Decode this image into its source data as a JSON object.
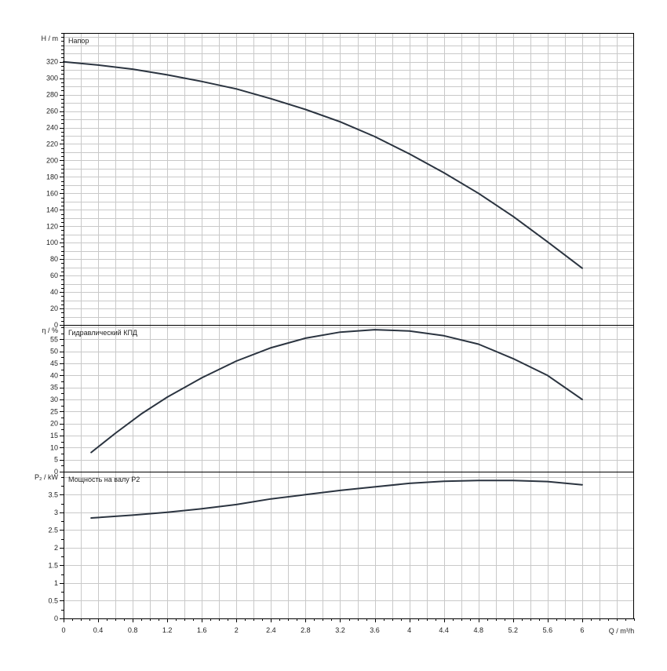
{
  "chart_data": {
    "type": "line",
    "x_axis": {
      "label": "Q / m³/h",
      "range": [
        0,
        6.6
      ],
      "ticks": [
        0,
        0.4,
        0.8,
        1.2,
        1.6,
        2,
        2.4,
        2.8,
        3.2,
        3.6,
        4,
        4.4,
        4.8,
        5.2,
        5.6,
        6
      ],
      "tick_labels": [
        "0",
        "0.4",
        "0.8",
        "1.2",
        "1.6",
        "2",
        "2.4",
        "2.8",
        "3.2",
        "3.6",
        "4",
        "4.4",
        "4.8",
        "5.2",
        "5.6",
        "6"
      ],
      "grid_step": 0.2
    },
    "grid": true,
    "line_color": "#2b3440",
    "panels": [
      {
        "id": "head",
        "title": "Напор",
        "ylabel": "H / m",
        "ylim": [
          0,
          355
        ],
        "yticks": [
          0,
          20,
          40,
          60,
          80,
          100,
          120,
          140,
          160,
          180,
          200,
          220,
          240,
          260,
          280,
          300,
          320
        ],
        "ytick_labels": [
          "0",
          "20",
          "40",
          "60",
          "80",
          "100",
          "120",
          "140",
          "160",
          "180",
          "200",
          "220",
          "240",
          "260",
          "280",
          "300",
          "320"
        ],
        "ygrid_step": 10,
        "series": [
          {
            "x": [
              0,
              0.4,
              0.8,
              1.2,
              1.6,
              2.0,
              2.4,
              2.8,
              3.2,
              3.6,
              4.0,
              4.4,
              4.8,
              5.2,
              5.6,
              6.0
            ],
            "y": [
              320,
              316,
              311,
              304,
              296,
              287,
              275,
              262,
              247,
              229,
              208,
              185,
              160,
              132,
              101,
              69
            ]
          }
        ]
      },
      {
        "id": "efficiency",
        "title": "Гидравлический КПД",
        "ylabel": "η / %",
        "ylim": [
          0,
          61
        ],
        "yticks": [
          0,
          5,
          10,
          15,
          20,
          25,
          30,
          35,
          40,
          45,
          50,
          55
        ],
        "ytick_labels": [
          "0",
          "5",
          "10",
          "15",
          "20",
          "25",
          "30",
          "35",
          "40",
          "45",
          "50",
          "55"
        ],
        "ygrid_step": 5,
        "series": [
          {
            "x": [
              0.32,
              0.6,
              0.9,
              1.2,
              1.6,
              2.0,
              2.4,
              2.8,
              3.2,
              3.6,
              4.0,
              4.4,
              4.8,
              5.2,
              5.6,
              6.0
            ],
            "y": [
              8,
              16,
              24,
              31,
              39,
              46,
              51.5,
              55.5,
              58,
              59,
              58.5,
              56.5,
              53,
              47,
              40,
              30
            ]
          }
        ]
      },
      {
        "id": "power",
        "title": "Мощность на валу P2",
        "ylabel": "P₂ / kW",
        "ylim": [
          0,
          4.15
        ],
        "yticks": [
          0,
          0.5,
          1,
          1.5,
          2,
          2.5,
          3,
          3.5
        ],
        "ytick_labels": [
          "0",
          "0.5",
          "1",
          "1.5",
          "2",
          "2.5",
          "3",
          "3.5"
        ],
        "ygrid_step": 0.5,
        "series": [
          {
            "x": [
              0.32,
              0.8,
              1.2,
              1.6,
              2.0,
              2.4,
              2.8,
              3.2,
              3.6,
              4.0,
              4.4,
              4.8,
              5.2,
              5.6,
              6.0
            ],
            "y": [
              2.84,
              2.92,
              3.0,
              3.1,
              3.22,
              3.38,
              3.5,
              3.62,
              3.72,
              3.82,
              3.88,
              3.9,
              3.9,
              3.87,
              3.78
            ]
          }
        ]
      }
    ]
  }
}
